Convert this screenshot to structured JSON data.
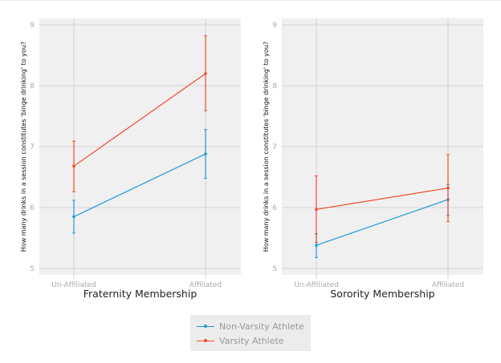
{
  "chart_data": [
    {
      "type": "line",
      "title": "",
      "xlabel": "Fraternity Membership",
      "ylabel": "How many drinks in a session constitutes 'binge drinking' to you?",
      "categories": [
        "Un-Affiliated",
        "Affiliated"
      ],
      "ylim": [
        5,
        9
      ],
      "yticks": [
        "5",
        "6",
        "7",
        "8",
        "9"
      ],
      "grid": true,
      "series": [
        {
          "name": "Non-Varsity Athlete",
          "color": "#1f9ad6",
          "values": [
            5.85,
            6.88
          ],
          "lower": [
            5.58,
            6.48
          ],
          "upper": [
            6.12,
            7.28
          ]
        },
        {
          "name": "Varsity Athlete",
          "color": "#f2492b",
          "values": [
            6.68,
            8.2
          ],
          "lower": [
            6.26,
            7.59
          ],
          "upper": [
            7.09,
            8.82
          ]
        }
      ]
    },
    {
      "type": "line",
      "title": "",
      "xlabel": "Sorority Membership",
      "ylabel": "How many drinks in a session constitutes 'binge drinking' to you?",
      "categories": [
        "Un-Affiliated",
        "Affiliated"
      ],
      "ylim": [
        5,
        9
      ],
      "yticks": [
        "5",
        "6",
        "7",
        "8",
        "9"
      ],
      "grid": true,
      "series": [
        {
          "name": "Non-Varsity Athlete",
          "color": "#1f9ad6",
          "values": [
            5.38,
            6.13
          ],
          "lower": [
            5.18,
            5.87
          ],
          "upper": [
            5.57,
            6.38
          ]
        },
        {
          "name": "Varsity Athlete",
          "color": "#f2492b",
          "values": [
            5.97,
            6.32
          ],
          "lower": [
            5.43,
            5.77
          ],
          "upper": [
            6.52,
            6.87
          ]
        }
      ]
    }
  ],
  "legend": {
    "placement": "bottom",
    "items": [
      "Non-Varsity Athlete",
      "Varsity Athlete"
    ]
  }
}
